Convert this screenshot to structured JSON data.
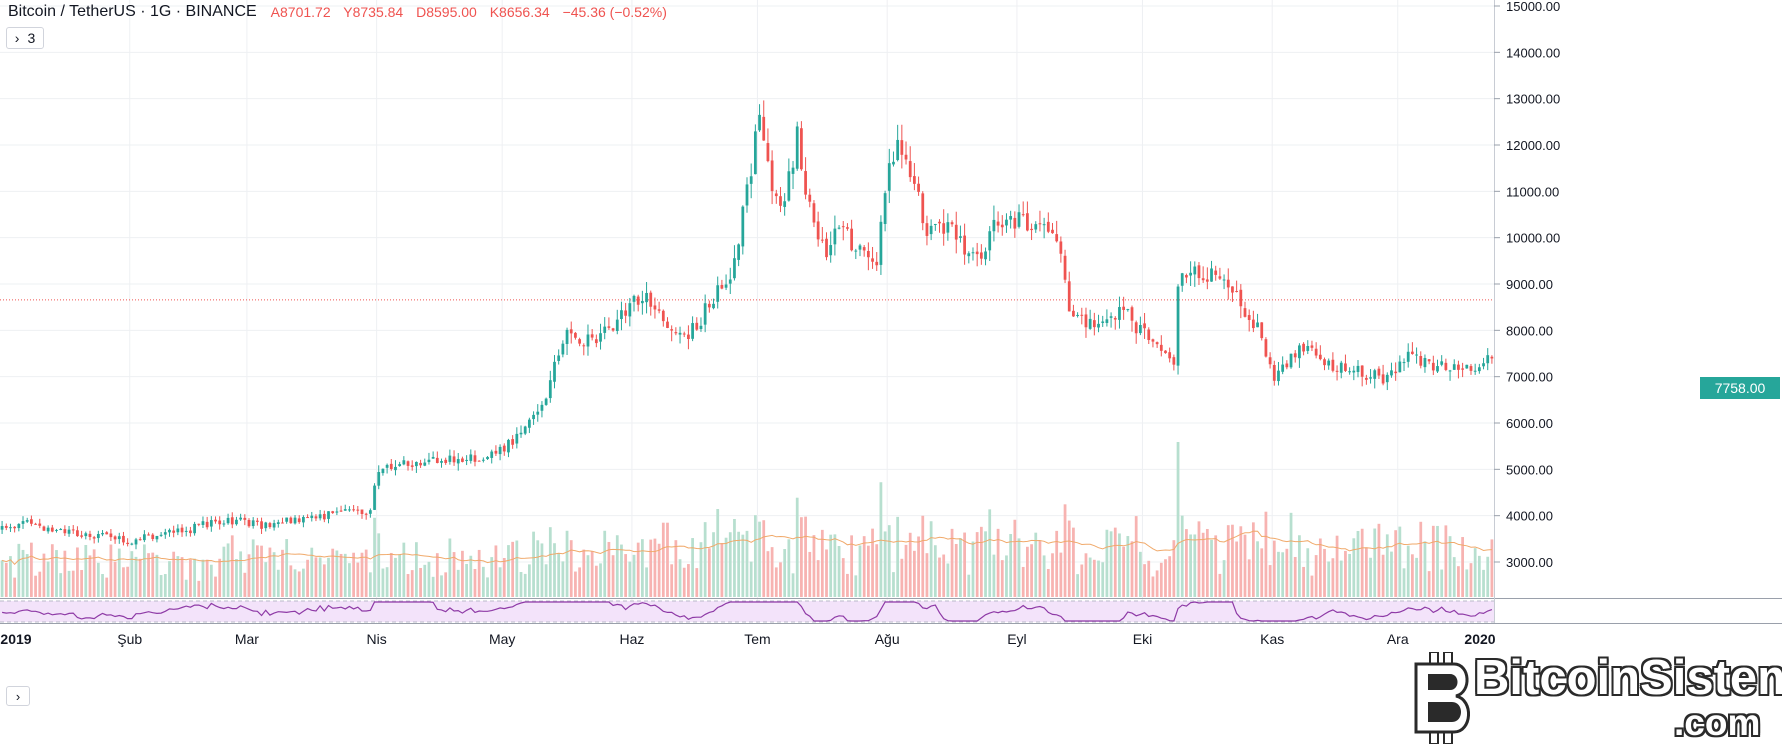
{
  "legend": {
    "symbol": "Bitcoin / TetherUS · 1G · BINANCE",
    "open": "A8701.72",
    "high": "Y8735.84",
    "low": "D8595.00",
    "close": "K8656.34",
    "change": "−45.36 (−0.52%)"
  },
  "indicator_toggle": {
    "chevron": "›",
    "count": "3"
  },
  "rsi_toggle": {
    "chevron": "›"
  },
  "last_price": "7758.00",
  "watermark": {
    "name": "BitcoinSistemi",
    "domain": ".com"
  },
  "colors": {
    "up": "#26a69a",
    "down": "#ef5350",
    "volume_up": "#b7dfcf",
    "volume_down": "#f7b3b1",
    "volume_ma": "#f0a96a",
    "rsi": "#8e3aa6",
    "rsi_band": "#f3e3fa",
    "grid": "#eef0f3",
    "axis_text": "#131722"
  },
  "chart_data": {
    "type": "candlestick",
    "interval": "1D",
    "price_axis": {
      "ticks": [
        "15000.00",
        "14000.00",
        "13000.00",
        "12000.00",
        "11000.00",
        "10000.00",
        "9000.00",
        "8000.00",
        "7000.00",
        "6000.00",
        "5000.00",
        "4000.00",
        "3000.00"
      ],
      "ylim": [
        2800,
        15000
      ]
    },
    "time_axis": {
      "labels": [
        "2019",
        "Şub",
        "Mar",
        "Nis",
        "May",
        "Haz",
        "Tem",
        "Ağu",
        "Eyl",
        "Eki",
        "Kas",
        "Ara",
        "2020"
      ]
    },
    "reference_line": 8656.34,
    "anchors": [
      [
        0,
        3700
      ],
      [
        7,
        3900
      ],
      [
        10,
        3700
      ],
      [
        25,
        3550
      ],
      [
        30,
        3440
      ],
      [
        38,
        3600
      ],
      [
        45,
        3700
      ],
      [
        48,
        3820
      ],
      [
        55,
        3900
      ],
      [
        62,
        3800
      ],
      [
        70,
        3900
      ],
      [
        80,
        4050
      ],
      [
        88,
        4100
      ],
      [
        90,
        5000
      ],
      [
        100,
        5200
      ],
      [
        110,
        5250
      ],
      [
        118,
        5300
      ],
      [
        125,
        5800
      ],
      [
        130,
        6500
      ],
      [
        132,
        7200
      ],
      [
        135,
        8000
      ],
      [
        140,
        7800
      ],
      [
        147,
        8100
      ],
      [
        150,
        8700
      ],
      [
        155,
        8600
      ],
      [
        160,
        7900
      ],
      [
        165,
        8000
      ],
      [
        170,
        8700
      ],
      [
        175,
        9400
      ],
      [
        178,
        11000
      ],
      [
        181,
        12700
      ],
      [
        184,
        11200
      ],
      [
        187,
        10700
      ],
      [
        190,
        12300
      ],
      [
        192,
        11000
      ],
      [
        197,
        9500
      ],
      [
        200,
        10400
      ],
      [
        203,
        9800
      ],
      [
        209,
        9500
      ],
      [
        212,
        11500
      ],
      [
        214,
        11900
      ],
      [
        218,
        11300
      ],
      [
        221,
        10000
      ],
      [
        226,
        10200
      ],
      [
        230,
        9800
      ],
      [
        234,
        9600
      ],
      [
        237,
        10500
      ],
      [
        244,
        10300
      ],
      [
        252,
        10100
      ],
      [
        255,
        8300
      ],
      [
        262,
        8100
      ],
      [
        268,
        8400
      ],
      [
        273,
        7900
      ],
      [
        280,
        7400
      ],
      [
        281,
        9000
      ],
      [
        283,
        9300
      ],
      [
        290,
        9200
      ],
      [
        295,
        8800
      ],
      [
        300,
        8000
      ],
      [
        304,
        7000
      ],
      [
        310,
        7700
      ],
      [
        316,
        7300
      ],
      [
        323,
        7200
      ],
      [
        330,
        6900
      ],
      [
        335,
        7400
      ],
      [
        345,
        7200
      ],
      [
        350,
        7100
      ],
      [
        356,
        7400
      ]
    ],
    "candles": [],
    "volume": [],
    "volume_ma": [],
    "rsi": []
  }
}
